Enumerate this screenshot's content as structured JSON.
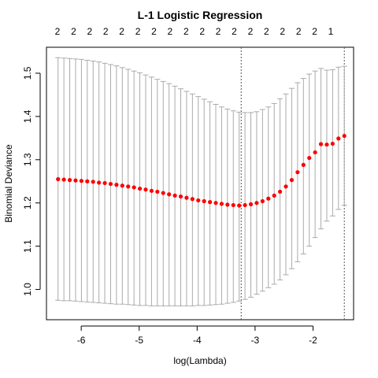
{
  "chart_data": {
    "type": "line",
    "title": "L-1 Logistic Regression",
    "xlabel": "log(Lambda)",
    "ylabel": "Binomial Deviance",
    "xlim": [
      -6.6,
      -1.3
    ],
    "ylim": [
      0.93,
      1.56
    ],
    "x_ticks": [
      -6,
      -5,
      -4,
      -3,
      -2
    ],
    "x_tick_labels": [
      "-6",
      "-5",
      "-4",
      "-3",
      "-2"
    ],
    "y_ticks": [
      1.0,
      1.1,
      1.2,
      1.3,
      1.4,
      1.5
    ],
    "y_tick_labels": [
      "1.0",
      "1.1",
      "1.2",
      "1.3",
      "1.4",
      "1.5"
    ],
    "top_axis_labels": [
      "2",
      "2",
      "2",
      "2",
      "2",
      "2",
      "2",
      "2",
      "2",
      "2",
      "2",
      "2",
      "2",
      "2",
      "2",
      "2",
      "2",
      "1"
    ],
    "vlines": [
      -3.24,
      -1.46
    ],
    "grid": false,
    "x_start": -6.4,
    "x_end": -1.46,
    "n_points": 50,
    "series": [
      {
        "y": [
          1.255,
          1.254,
          1.253,
          1.252,
          1.251,
          1.25,
          1.249,
          1.247,
          1.246,
          1.244,
          1.242,
          1.24,
          1.238,
          1.236,
          1.233,
          1.231,
          1.228,
          1.226,
          1.223,
          1.22,
          1.217,
          1.215,
          1.212,
          1.209,
          1.206,
          1.204,
          1.202,
          1.2,
          1.198,
          1.196,
          1.195,
          1.194,
          1.195,
          1.197,
          1.2,
          1.204,
          1.21,
          1.217,
          1.226,
          1.238,
          1.253,
          1.271,
          1.288,
          1.304,
          1.317,
          1.336,
          1.335,
          1.337,
          1.349,
          1.355
        ],
        "upper": [
          1.536,
          1.535,
          1.534,
          1.533,
          1.532,
          1.53,
          1.528,
          1.526,
          1.523,
          1.52,
          1.517,
          1.513,
          1.509,
          1.505,
          1.501,
          1.496,
          1.491,
          1.486,
          1.481,
          1.476,
          1.47,
          1.464,
          1.458,
          1.452,
          1.446,
          1.44,
          1.434,
          1.428,
          1.422,
          1.417,
          1.413,
          1.41,
          1.409,
          1.409,
          1.411,
          1.416,
          1.422,
          1.43,
          1.441,
          1.452,
          1.465,
          1.478,
          1.488,
          1.498,
          1.505,
          1.511,
          1.507,
          1.508,
          1.514,
          1.516
        ],
        "lower": [
          0.975,
          0.974,
          0.974,
          0.973,
          0.972,
          0.971,
          0.97,
          0.969,
          0.968,
          0.967,
          0.966,
          0.966,
          0.965,
          0.964,
          0.963,
          0.963,
          0.962,
          0.962,
          0.962,
          0.962,
          0.962,
          0.962,
          0.962,
          0.962,
          0.963,
          0.963,
          0.964,
          0.965,
          0.966,
          0.968,
          0.97,
          0.973,
          0.977,
          0.982,
          0.989,
          0.996,
          1.004,
          1.012,
          1.022,
          1.034,
          1.048,
          1.064,
          1.082,
          1.1,
          1.12,
          1.14,
          1.158,
          1.17,
          1.185,
          1.195
        ]
      }
    ],
    "colors": {
      "points": "#ff0000",
      "error_bars": "#aaaaaa",
      "vlines": "#555555",
      "axis": "#000000"
    }
  }
}
